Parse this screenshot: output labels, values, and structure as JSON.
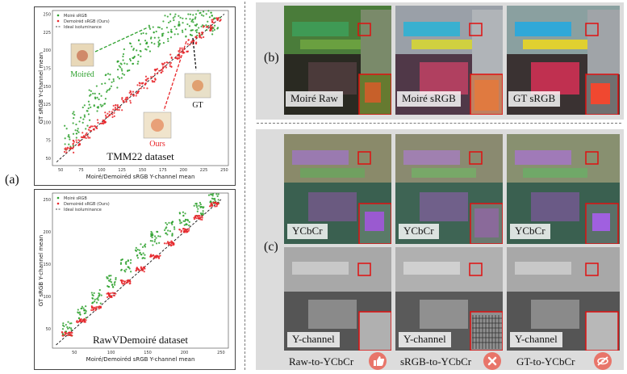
{
  "panel_a": {
    "label": "(a)",
    "plot1": {
      "legend": [
        "Moiré sRGB",
        "Demoiréd sRGB (Ours)",
        "Ideal isoluminance"
      ],
      "xlabel": "Moiré/Demoiréd sRGB Y-channel mean",
      "ylabel": "GT sRGB Y-channel mean",
      "caption": "TMM22 dataset",
      "annot_moired": "Moiréd",
      "annot_gt": "GT",
      "annot_ours": "Ours",
      "xticks": [
        "50",
        "75",
        "100",
        "125",
        "150",
        "175",
        "200",
        "225",
        "250"
      ],
      "yticks": [
        "50",
        "75",
        "100",
        "125",
        "150",
        "175",
        "200",
        "225",
        "250"
      ]
    },
    "plot2": {
      "legend": [
        "Moiré sRGB",
        "Demoiréd sRGB (Ours)",
        "Ideal isoluminance"
      ],
      "xlabel": "Moiré/Demoiréd sRGB Y-channel mean",
      "ylabel": "GT sRGB Y-channel mean",
      "caption": "RawVDemoiré dataset",
      "xticks": [
        "50",
        "100",
        "150",
        "200",
        "250"
      ],
      "yticks": [
        "50",
        "100",
        "150",
        "200",
        "250"
      ]
    }
  },
  "panel_b": {
    "label": "(b)",
    "captions": [
      "Moiré Raw",
      "Moiré sRGB",
      "GT sRGB"
    ]
  },
  "panel_c": {
    "label": "(c)",
    "top_captions": [
      "YCbCr",
      "YCbCr",
      "YCbCr"
    ],
    "bottom_captions": [
      "Y-channel",
      "Y-channel",
      "Y-channel"
    ],
    "bottom_labels": [
      "Raw-to-YCbCr",
      "sRGB-to-YCbCr",
      "GT-to-YCbCr"
    ],
    "icons": [
      "thumbs-up-icon",
      "cross-icon",
      "eye-slash-icon"
    ]
  },
  "colors": {
    "moire_series": "#2ca02c",
    "ours_series": "#e8262a",
    "annotation_red": "#e8262a",
    "annotation_green": "#2ca02c",
    "background_grey": "#dcdcdc",
    "icon_fill": "#e8756a"
  },
  "chart_data": [
    {
      "type": "scatter",
      "caption": "TMM22 dataset",
      "xlabel": "Moiré/Demoiréd sRGB Y-channel mean",
      "ylabel": "GT sRGB Y-channel mean",
      "xlim": [
        40,
        255
      ],
      "ylim": [
        40,
        255
      ],
      "legend_position": "top-left",
      "series": [
        {
          "name": "Moiré sRGB",
          "x": [
            60,
            70,
            80,
            90,
            100,
            110,
            120,
            130,
            140,
            150,
            160,
            170,
            180,
            190,
            200,
            210,
            215,
            220,
            230,
            240
          ],
          "y": [
            80,
            95,
            110,
            125,
            140,
            150,
            165,
            185,
            200,
            205,
            215,
            225,
            230,
            232,
            236,
            238,
            240,
            241,
            242,
            244
          ]
        },
        {
          "name": "Demoiréd sRGB (Ours)",
          "x": [
            60,
            70,
            80,
            90,
            100,
            110,
            120,
            130,
            140,
            150,
            160,
            170,
            180,
            190,
            200,
            210,
            220,
            230,
            240
          ],
          "y": [
            62,
            72,
            82,
            91,
            101,
            111,
            120,
            131,
            140,
            151,
            160,
            171,
            180,
            191,
            200,
            211,
            221,
            231,
            241
          ]
        },
        {
          "name": "Ideal isoluminance",
          "x": [
            45,
            250
          ],
          "y": [
            45,
            250
          ]
        }
      ]
    },
    {
      "type": "scatter",
      "caption": "RawVDemoiré dataset",
      "xlabel": "Moiré/Demoiréd sRGB Y-channel mean",
      "ylabel": "GT sRGB Y-channel mean",
      "xlim": [
        20,
        260
      ],
      "ylim": [
        20,
        260
      ],
      "legend_position": "top-left",
      "series": [
        {
          "name": "Moiré sRGB",
          "x": [
            40,
            60,
            80,
            100,
            120,
            140,
            160,
            180,
            200,
            220,
            240
          ],
          "y": [
            50,
            75,
            100,
            125,
            148,
            170,
            190,
            205,
            220,
            235,
            248
          ]
        },
        {
          "name": "Demoiréd sRGB (Ours)",
          "x": [
            40,
            60,
            80,
            100,
            120,
            140,
            160,
            180,
            200,
            220,
            240
          ],
          "y": [
            42,
            62,
            82,
            102,
            122,
            142,
            162,
            182,
            202,
            222,
            242
          ]
        },
        {
          "name": "Ideal isoluminance",
          "x": [
            25,
            250
          ],
          "y": [
            25,
            250
          ]
        }
      ]
    }
  ]
}
